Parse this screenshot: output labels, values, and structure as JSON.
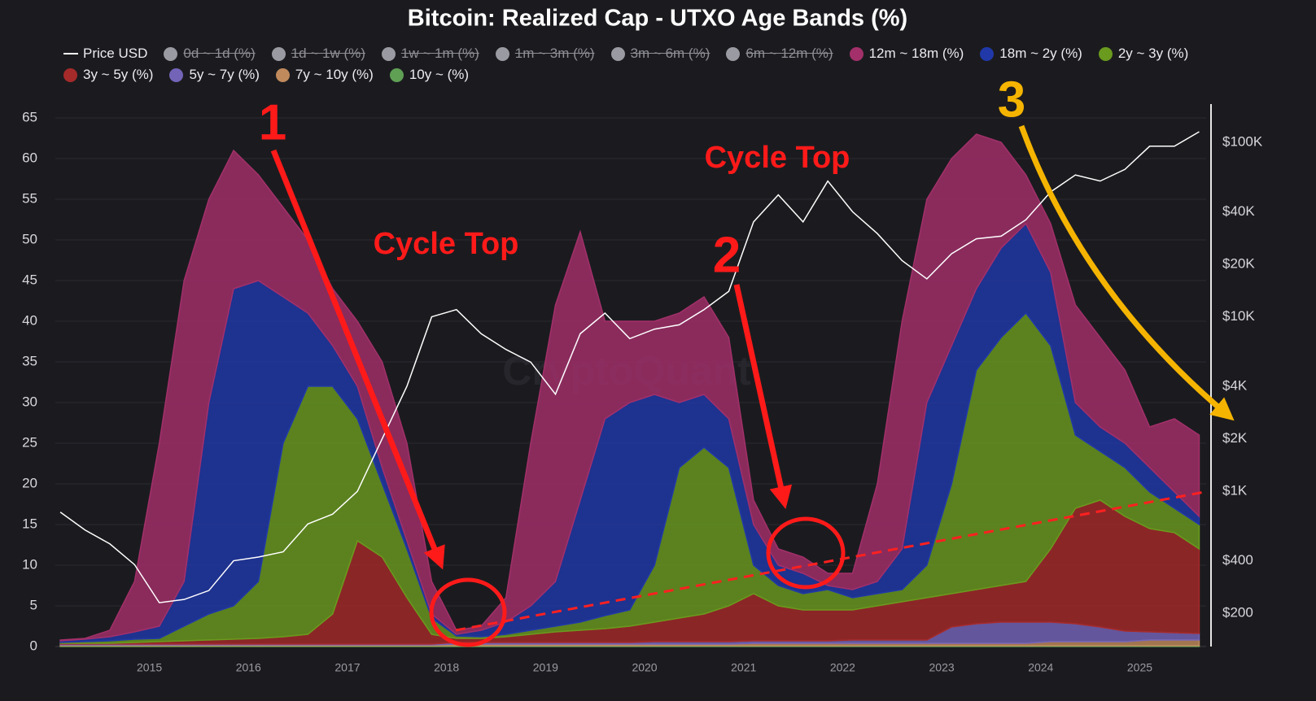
{
  "chart_data": {
    "type": "area",
    "stacked": true,
    "title": "Bitcoin: Realized Cap - UTXO Age Bands (%)",
    "watermark": "CryptoQuant",
    "legend": "top",
    "grid": true,
    "y2_log": true,
    "x": [
      2014.1,
      2014.35,
      2014.6,
      2014.85,
      2015.1,
      2015.35,
      2015.6,
      2015.85,
      2016.1,
      2016.35,
      2016.6,
      2016.85,
      2017.1,
      2017.35,
      2017.6,
      2017.85,
      2018.1,
      2018.35,
      2018.6,
      2018.85,
      2019.1,
      2019.35,
      2019.6,
      2019.85,
      2020.1,
      2020.35,
      2020.6,
      2020.85,
      2021.1,
      2021.35,
      2021.6,
      2021.85,
      2022.1,
      2022.35,
      2022.6,
      2022.85,
      2023.1,
      2023.35,
      2023.6,
      2023.85,
      2024.1,
      2024.35,
      2024.6,
      2024.85,
      2025.1,
      2025.35,
      2025.6
    ],
    "xlim": [
      2014.05,
      2025.67
    ],
    "xticks": [
      2015,
      2016,
      2017,
      2018,
      2019,
      2020,
      2021,
      2022,
      2023,
      2024,
      2025
    ],
    "ylim": [
      0,
      65
    ],
    "yticks": [
      0,
      5,
      10,
      15,
      20,
      25,
      30,
      35,
      40,
      45,
      50,
      55,
      60,
      65
    ],
    "y2lim": [
      129,
      138000
    ],
    "y2ticks": [
      {
        "value": 200,
        "label": "$200"
      },
      {
        "value": 400,
        "label": "$400"
      },
      {
        "value": 1000,
        "label": "$1K"
      },
      {
        "value": 2000,
        "label": "$2K"
      },
      {
        "value": 4000,
        "label": "$4K"
      },
      {
        "value": 10000,
        "label": "$10K"
      },
      {
        "value": 20000,
        "label": "$20K"
      },
      {
        "value": 40000,
        "label": "$40K"
      },
      {
        "value": 100000,
        "label": "$100K"
      }
    ],
    "series": [
      {
        "name": "Price USD",
        "color": "#ffffff",
        "axis": "y2",
        "values": [
          760,
          600,
          500,
          380,
          230,
          240,
          270,
          400,
          420,
          450,
          650,
          740,
          1000,
          2000,
          4000,
          10000,
          11000,
          8000,
          6500,
          5500,
          3600,
          8000,
          10500,
          7500,
          8500,
          9000,
          11000,
          14000,
          35000,
          50000,
          35000,
          60000,
          40000,
          30000,
          21000,
          16500,
          23000,
          28000,
          29000,
          36000,
          52000,
          65000,
          60000,
          70000,
          95000,
          95000,
          115000
        ]
      },
      {
        "name": "0d ~ 1d (%)",
        "color": "#9a9aa2",
        "hidden": true
      },
      {
        "name": "1d ~ 1w (%)",
        "color": "#9a9aa2",
        "hidden": true
      },
      {
        "name": "1w ~ 1m (%)",
        "color": "#9a9aa2",
        "hidden": true
      },
      {
        "name": "1m ~ 3m (%)",
        "color": "#9a9aa2",
        "hidden": true
      },
      {
        "name": "3m ~ 6m (%)",
        "color": "#9a9aa2",
        "hidden": true
      },
      {
        "name": "6m ~ 12m (%)",
        "color": "#9a9aa2",
        "hidden": true
      },
      {
        "name": "12m ~ 18m (%)",
        "color": "#a3306a",
        "values": [
          0.1,
          0.1,
          0.8,
          6.2,
          22.5,
          37,
          25,
          17,
          13,
          11,
          9,
          7,
          8,
          13,
          12,
          4,
          0.5,
          0.5,
          3,
          20,
          34,
          33,
          12,
          10,
          9,
          11,
          12,
          10,
          3,
          2,
          2,
          1.5,
          2,
          12,
          28,
          25,
          23,
          19,
          13,
          6,
          6,
          12,
          11,
          9,
          5,
          9,
          10
        ]
      },
      {
        "name": "18m ~ 2y (%)",
        "color": "#2038a8",
        "values": [
          0.2,
          0.3,
          0.5,
          0.9,
          1.5,
          5.5,
          26,
          39,
          37,
          18,
          9,
          5,
          4,
          2,
          1,
          0.5,
          0.2,
          0.8,
          1.5,
          3,
          5.5,
          15,
          24.2,
          25.5,
          21,
          8,
          6.5,
          6,
          5,
          2.5,
          2.5,
          0.5,
          1,
          1.5,
          5,
          20,
          17,
          10,
          11,
          11,
          9,
          4,
          3,
          3,
          3,
          2,
          1
        ]
      },
      {
        "name": "2y ~ 3y (%)",
        "color": "#6a9a1e",
        "values": [
          0.1,
          0.2,
          0.3,
          0.4,
          0.4,
          1.8,
          3.2,
          4.1,
          7,
          23.8,
          30.5,
          28,
          15,
          9,
          6,
          2,
          0.3,
          0.2,
          0.3,
          0.5,
          0.7,
          1,
          1.6,
          2,
          7,
          18.5,
          20.5,
          17,
          3.5,
          2.5,
          2,
          2.5,
          1.5,
          1.5,
          1.5,
          4,
          13.5,
          27,
          30.5,
          33,
          25,
          9,
          6,
          6,
          4.5,
          3,
          3
        ]
      },
      {
        "name": "3y ~ 5y (%)",
        "color": "#a52a2a",
        "values": [
          0.1,
          0.1,
          0.1,
          0.2,
          0.3,
          0.4,
          0.5,
          0.6,
          0.7,
          0.9,
          1.2,
          3.7,
          12.7,
          10.7,
          5.7,
          1.2,
          0.5,
          0.5,
          0.7,
          1,
          1.3,
          1.5,
          1.7,
          2,
          2.4,
          2.9,
          3.4,
          4.4,
          5.8,
          4.3,
          3.8,
          3.8,
          3.7,
          4.2,
          4.7,
          5.2,
          4.1,
          4.2,
          4.5,
          5,
          9,
          14.2,
          15.6,
          14.1,
          12.7,
          12.3,
          10.4
        ]
      },
      {
        "name": "5y ~ 7y (%)",
        "color": "#7464b8",
        "values": [
          0.1,
          0.1,
          0.1,
          0.1,
          0.1,
          0.1,
          0.1,
          0.1,
          0.1,
          0.1,
          0.1,
          0.1,
          0.1,
          0.1,
          0.1,
          0.1,
          0.2,
          0.2,
          0.2,
          0.2,
          0.2,
          0.2,
          0.2,
          0.2,
          0.3,
          0.3,
          0.3,
          0.3,
          0.3,
          0.3,
          0.3,
          0.3,
          0.4,
          0.4,
          0.4,
          0.4,
          2,
          2.4,
          2.6,
          2.6,
          2.4,
          2.2,
          1.8,
          1.3,
          1,
          0.9,
          0.8
        ]
      },
      {
        "name": "7y ~ 10y (%)",
        "color": "#c08a5c",
        "values": [
          0.1,
          0.1,
          0.1,
          0.1,
          0.1,
          0.1,
          0.1,
          0.1,
          0.1,
          0.1,
          0.1,
          0.1,
          0.1,
          0.1,
          0.1,
          0.1,
          0.2,
          0.2,
          0.2,
          0.2,
          0.2,
          0.2,
          0.2,
          0.2,
          0.2,
          0.2,
          0.2,
          0.2,
          0.3,
          0.3,
          0.3,
          0.3,
          0.3,
          0.3,
          0.3,
          0.3,
          0.3,
          0.3,
          0.3,
          0.3,
          0.5,
          0.5,
          0.5,
          0.5,
          0.7,
          0.7,
          0.7
        ]
      },
      {
        "name": "10y ~ (%)",
        "color": "#5fa055",
        "values": [
          0.1,
          0.1,
          0.1,
          0.1,
          0.1,
          0.1,
          0.1,
          0.1,
          0.1,
          0.1,
          0.1,
          0.1,
          0.1,
          0.1,
          0.1,
          0.1,
          0.1,
          0.1,
          0.1,
          0.1,
          0.1,
          0.1,
          0.1,
          0.1,
          0.1,
          0.1,
          0.1,
          0.1,
          0.1,
          0.1,
          0.1,
          0.1,
          0.1,
          0.1,
          0.1,
          0.1,
          0.1,
          0.1,
          0.1,
          0.1,
          0.1,
          0.1,
          0.1,
          0.1,
          0.1,
          0.1,
          0.1
        ]
      }
    ],
    "annotations": {
      "one": "1",
      "two": "2",
      "three": "3",
      "cycle_top_1": "Cycle Top",
      "cycle_top_2": "Cycle Top"
    }
  }
}
